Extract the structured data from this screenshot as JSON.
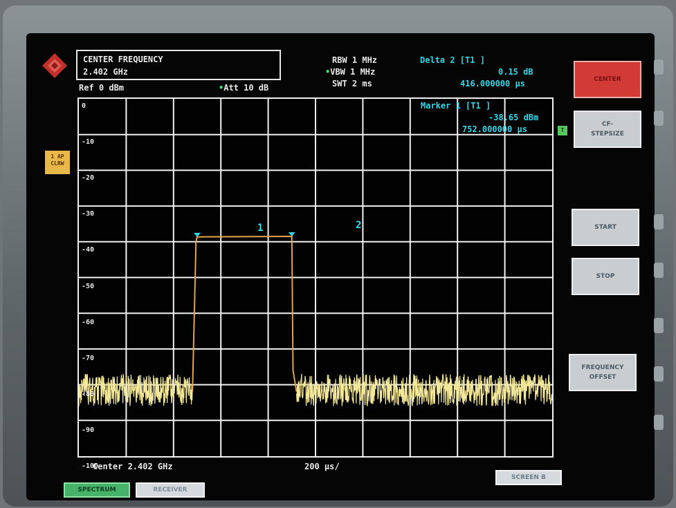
{
  "header": {
    "param_title": "CENTER FREQUENCY",
    "param_value": "2.402 GHz",
    "ref": "Ref  0 dBm",
    "att": "Att  10 dB",
    "rbw": "RBW 1 MHz",
    "vbw": "VBW 1 MHz",
    "swt": "SWT 2 ms",
    "delta_title": "Delta 2 [T1 ]",
    "delta_value": "0.15 dB",
    "delta_time": "416.000000 µs",
    "marker_title": "Marker 1 [T1 ]",
    "marker_value": "-38.65 dBm",
    "marker_time": "752.000000 µs"
  },
  "side_tag": "1 AP\nCLRW",
  "y_ticks": [
    "0",
    "-10",
    "-20",
    "-30",
    "-40",
    "-50",
    "-60",
    "-70",
    "-80",
    "-90",
    "-100"
  ],
  "footer": {
    "center": "Center 2.402 GHz",
    "span": "200 µs/"
  },
  "markers": [
    "1",
    "2"
  ],
  "softkeys": {
    "center": "CENTER",
    "cf_stepsize": "CF-\nSTEPSIZE",
    "start": "START",
    "stop": "STOP",
    "frequency_offset": "FREQUENCY\nOFFSET"
  },
  "tabs": {
    "spectrum": "SPECTRUM",
    "receiver": "RECEIVER",
    "screen_b": "SCREEN B"
  },
  "colors": {
    "trace": "#f3e79a",
    "marker": "#35d6e8",
    "grid": "#f2f2f2"
  },
  "chart_data": {
    "type": "line",
    "x_unit": "µs",
    "y_unit": "dBm",
    "ylim": [
      -100,
      0
    ],
    "xlim": [
      0,
      2000
    ],
    "series": [
      {
        "x": [
          0,
          480,
          495,
          500,
          540,
          900,
          905,
          920,
          2000
        ],
        "values": [
          -82,
          -82,
          -40,
          -38.65,
          -38.6,
          -38.5,
          -76,
          -82,
          -82
        ]
      }
    ],
    "grid": true
  }
}
